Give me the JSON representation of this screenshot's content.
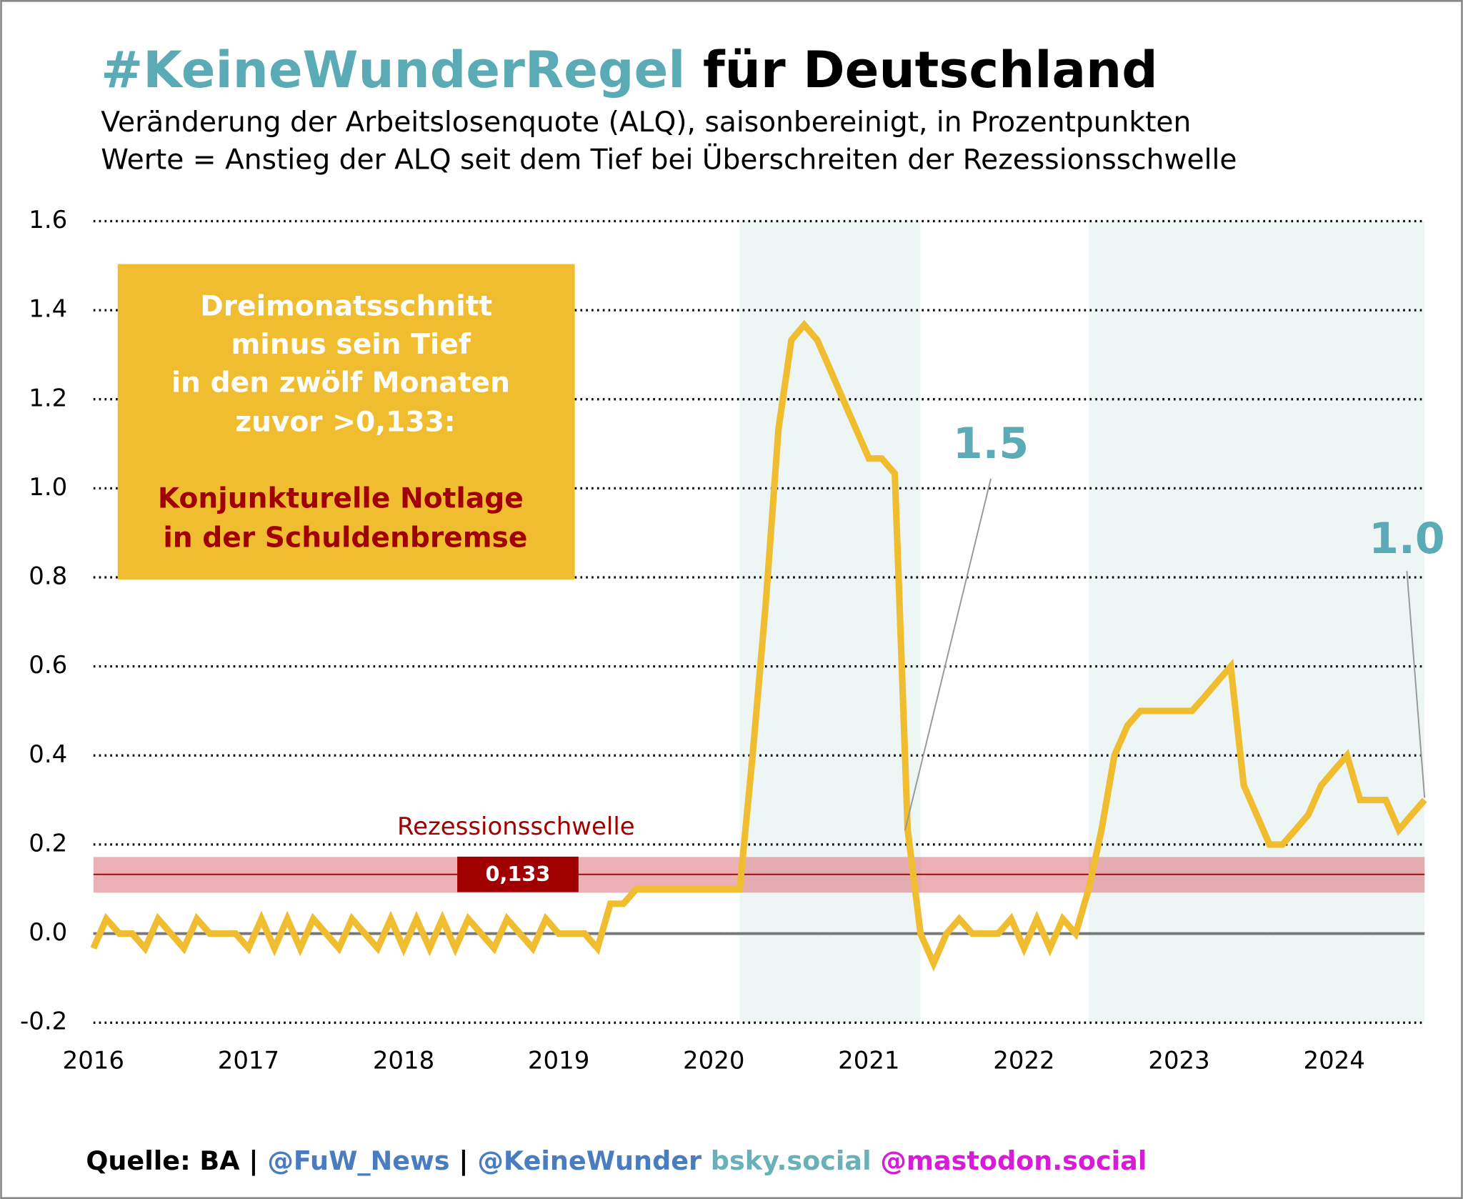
{
  "chart_data": {
    "type": "line",
    "title_parts": [
      "#KeineWunderRegel",
      "für Deutschland"
    ],
    "title_colors": [
      "#5aabb5",
      "#000000"
    ],
    "subtitle_lines": [
      "Veränderung der Arbeitslosenquote (ALQ), saisonbereinigt, in Prozentpunkten",
      "Werte = Anstieg der ALQ seit dem Tief bei Überschreiten der Rezessionsschwelle"
    ],
    "x": [
      2016,
      2016.083,
      2016.167,
      2016.25,
      2016.333,
      2016.417,
      2016.5,
      2016.583,
      2016.667,
      2016.75,
      2016.833,
      2016.917,
      2017,
      2017.083,
      2017.167,
      2017.25,
      2017.333,
      2017.417,
      2017.5,
      2017.583,
      2017.667,
      2017.75,
      2017.833,
      2017.917,
      2018,
      2018.083,
      2018.167,
      2018.25,
      2018.333,
      2018.417,
      2018.5,
      2018.583,
      2018.667,
      2018.75,
      2018.833,
      2018.917,
      2019,
      2019.083,
      2019.167,
      2019.25,
      2019.333,
      2019.417,
      2019.5,
      2019.583,
      2019.667,
      2019.75,
      2019.833,
      2019.917,
      2020,
      2020.083,
      2020.167,
      2020.25,
      2020.333,
      2020.417,
      2020.5,
      2020.583,
      2020.667,
      2020.75,
      2020.833,
      2020.917,
      2021,
      2021.083,
      2021.167,
      2021.25,
      2021.333,
      2021.417,
      2021.5,
      2021.583,
      2021.667,
      2021.75,
      2021.833,
      2021.917,
      2022,
      2022.083,
      2022.167,
      2022.25,
      2022.333,
      2022.417,
      2022.5,
      2022.583,
      2022.667,
      2022.75,
      2022.833,
      2022.917,
      2023,
      2023.083,
      2023.167,
      2023.25,
      2023.333,
      2023.417,
      2023.5,
      2023.583,
      2023.667,
      2023.75,
      2023.833,
      2023.917,
      2024,
      2024.083,
      2024.167,
      2024.25,
      2024.333,
      2024.417,
      2024.5,
      2024.583
    ],
    "series": [
      {
        "color": "#f0bd30",
        "values": [
          -0.033,
          0.033,
          0,
          0,
          -0.033,
          0.033,
          0,
          -0.033,
          0.033,
          0,
          0,
          0,
          -0.033,
          0.033,
          -0.033,
          0.033,
          -0.033,
          0.033,
          0,
          -0.033,
          0.033,
          0,
          -0.033,
          0.033,
          -0.033,
          0.033,
          -0.033,
          0.033,
          -0.033,
          0.033,
          0,
          -0.033,
          0.033,
          0,
          -0.033,
          0.033,
          0,
          0,
          0,
          -0.033,
          0.067,
          0.067,
          0.1,
          0.1,
          0.1,
          0.1,
          0.1,
          0.1,
          0.1,
          0.1,
          0.1,
          0.4,
          0.733,
          1.133,
          1.333,
          1.367,
          1.333,
          1.267,
          1.2,
          1.133,
          1.067,
          1.067,
          1.033,
          0.233,
          0,
          -0.067,
          0,
          0.033,
          0,
          0,
          0,
          0.033,
          -0.033,
          0.033,
          -0.033,
          0.033,
          0,
          0.1,
          0.233,
          0.4,
          0.467,
          0.5,
          0.5,
          0.5,
          0.5,
          0.5,
          0.533,
          0.567,
          0.6,
          0.333,
          0.267,
          0.2,
          0.2,
          0.233,
          0.267,
          0.333,
          0.367,
          0.4,
          0.3,
          0.3,
          0.3,
          0.233,
          0.267,
          0.3
        ]
      }
    ],
    "xlim": [
      2016,
      2024.583
    ],
    "xticks": [
      2016,
      2017,
      2018,
      2019,
      2020,
      2021,
      2022,
      2023,
      2024
    ],
    "ylim": [
      -0.2,
      1.6
    ],
    "yticks": [
      1.6,
      1.4,
      1.2,
      {
        "value": 1.0,
        "label": "1.0"
      },
      0.8,
      0.6,
      0.4,
      0.2,
      {
        "value": 0,
        "label": "0.0"
      },
      -0.2
    ],
    "grid": true,
    "shaded_ranges": [
      [
        2020.167,
        2021.333
      ],
      [
        2022.417,
        2024.583
      ]
    ],
    "shade_color": "#eef6f5",
    "threshold": 0.133,
    "threshold_label": "0,133",
    "threshold_band": [
      0.092,
      0.172
    ],
    "threshold_name": "Rezessionsschwelle",
    "annotations": [
      "1.5",
      "1.0"
    ],
    "box_lines": [
      "Dreimonatsschnitt",
      "minus sein Tief",
      "in den zwölf Monaten",
      "zuvor >0,133:"
    ],
    "box_highlight_lines": [
      "Konjunkturelle Notlage",
      "in der Schuldenbremse"
    ],
    "footer_parts": [
      "Quelle: BA |",
      "@FuW_News",
      "|",
      "@KeineWunder",
      "bsky.social",
      "@mastodon.social"
    ],
    "footer_colors": [
      "#000000",
      "#4a7dc0",
      "#000000",
      "#4a7dc0",
      "#6ab0b8",
      "#d81bd8"
    ]
  }
}
